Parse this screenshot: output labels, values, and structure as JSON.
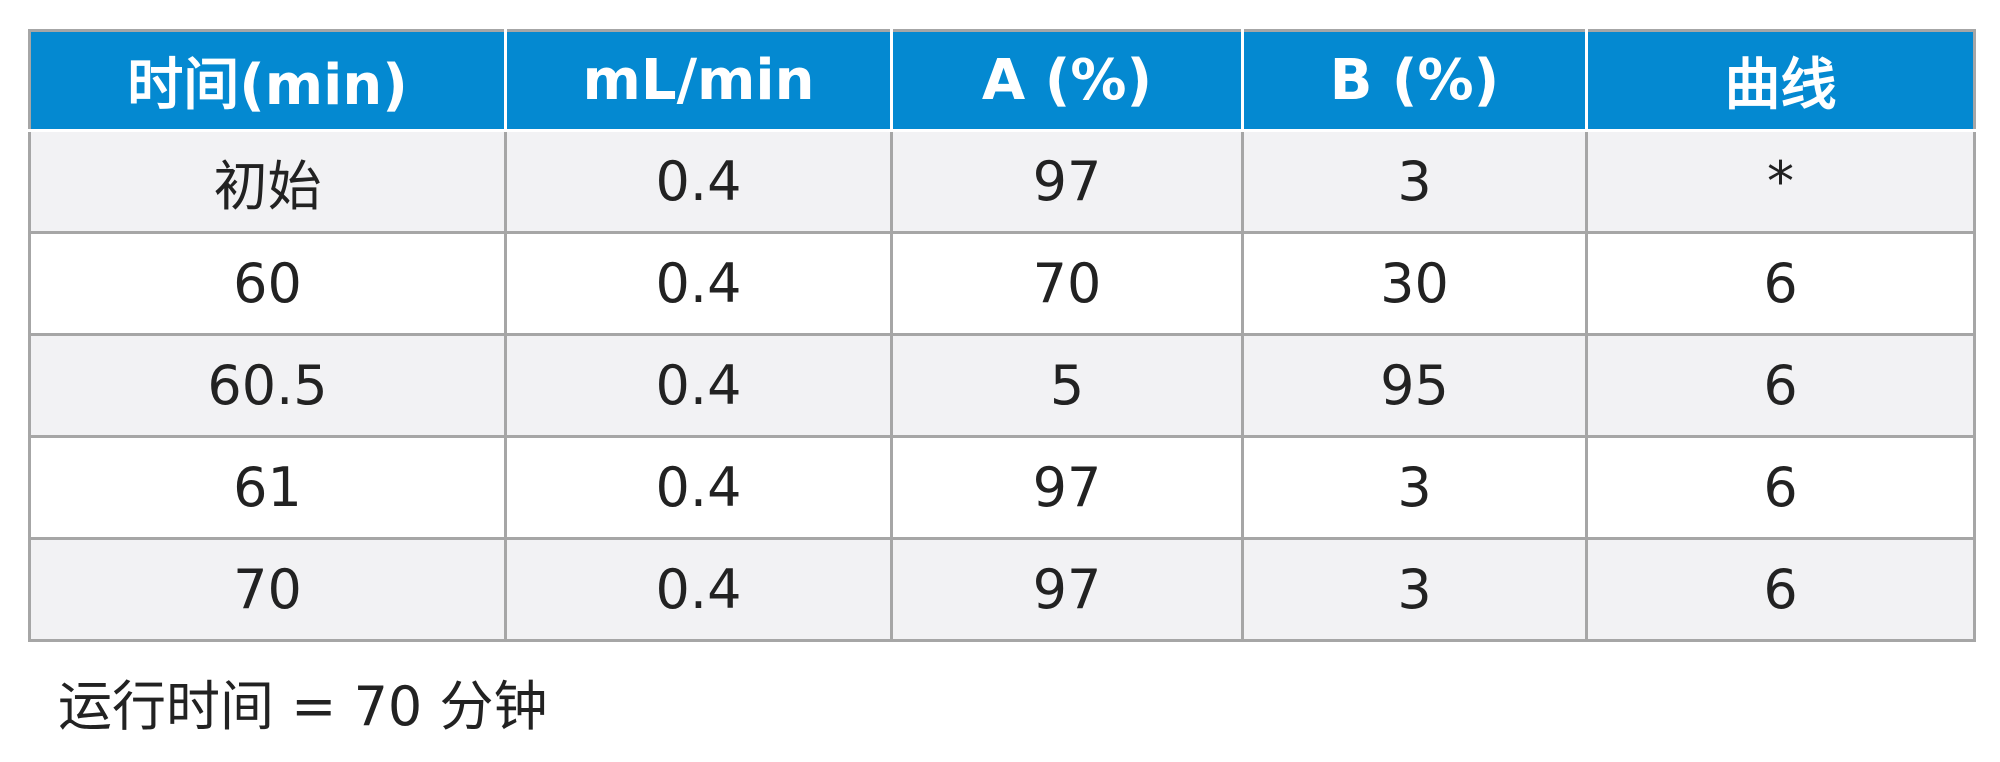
{
  "table": {
    "headers": [
      "时间(min)",
      "mL/min",
      "A (%)",
      "B (%)",
      "曲线"
    ],
    "rows": [
      [
        "初始",
        "0.4",
        "97",
        "3",
        "*"
      ],
      [
        "60",
        "0.4",
        "70",
        "30",
        "6"
      ],
      [
        "60.5",
        "0.4",
        "5",
        "95",
        "6"
      ],
      [
        "61",
        "0.4",
        "97",
        "3",
        "6"
      ],
      [
        "70",
        "0.4",
        "97",
        "3",
        "6"
      ]
    ]
  },
  "footnote": "运行时间 = 70 分钟",
  "colors": {
    "header_bg": "#0489d1",
    "header_text": "#ffffff",
    "shaded_row": "#f2f2f4",
    "border": "#a6a6a6"
  }
}
